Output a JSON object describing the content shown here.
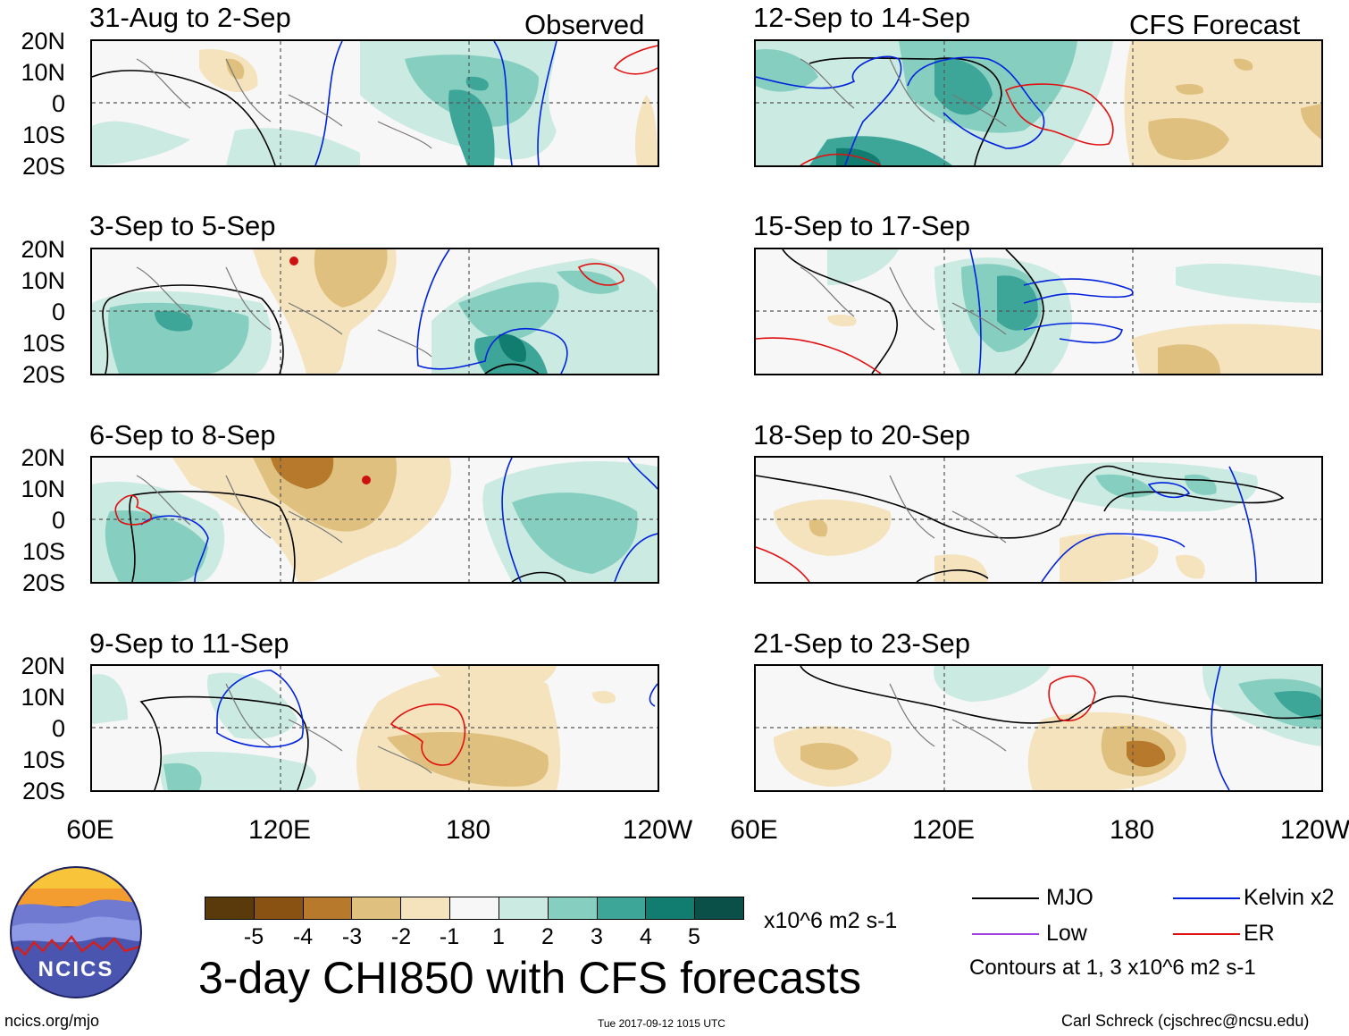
{
  "columns": {
    "left_label": "Observed",
    "right_label": "CFS Forecast"
  },
  "panels": [
    {
      "title": "31-Aug to 2-Sep",
      "column": "observed"
    },
    {
      "title": "3-Sep to 5-Sep",
      "column": "observed"
    },
    {
      "title": "6-Sep to 8-Sep",
      "column": "observed"
    },
    {
      "title": "9-Sep to 11-Sep",
      "column": "observed"
    },
    {
      "title": "12-Sep to 14-Sep",
      "column": "forecast"
    },
    {
      "title": "15-Sep to 17-Sep",
      "column": "forecast"
    },
    {
      "title": "18-Sep to 20-Sep",
      "column": "forecast"
    },
    {
      "title": "21-Sep to 23-Sep",
      "column": "forecast"
    }
  ],
  "axes": {
    "lat_labels": [
      "20N",
      "10N",
      "0",
      "10S",
      "20S"
    ],
    "lon_labels_left": [
      "60E",
      "120E",
      "180",
      "120W"
    ],
    "lon_labels_right": [
      "60E",
      "120E",
      "180",
      "120W"
    ]
  },
  "colorbar": {
    "colors": [
      "#5a3a0a",
      "#8a5212",
      "#b7792c",
      "#dfc07e",
      "#f4e3bd",
      "#f7f7f7",
      "#cbeae2",
      "#86cfc0",
      "#3ea699",
      "#117d70",
      "#0b4f49"
    ],
    "tick_labels": [
      "-5",
      "-4",
      "-3",
      "-2",
      "-1",
      "1",
      "2",
      "3",
      "4",
      "5"
    ],
    "units": "x10^6 m2 s-1"
  },
  "title": "3-day CHI850 with CFS forecasts",
  "legend": {
    "items": [
      {
        "label": "MJO",
        "color": "#000000"
      },
      {
        "label": "Kelvin x2",
        "color": "#0022dd"
      },
      {
        "label": "Low",
        "color": "#a040e0"
      },
      {
        "label": "ER",
        "color": "#e01010"
      }
    ],
    "note": "Contours at 1, 3 x10^6 m2 s-1"
  },
  "logo_text": "NCICS",
  "footer": {
    "url": "ncics.org/mjo",
    "timestamp": "Tue 2017-09-12 1015 UTC",
    "author": "Carl Schreck (cjschrec@ncsu.edu)"
  }
}
